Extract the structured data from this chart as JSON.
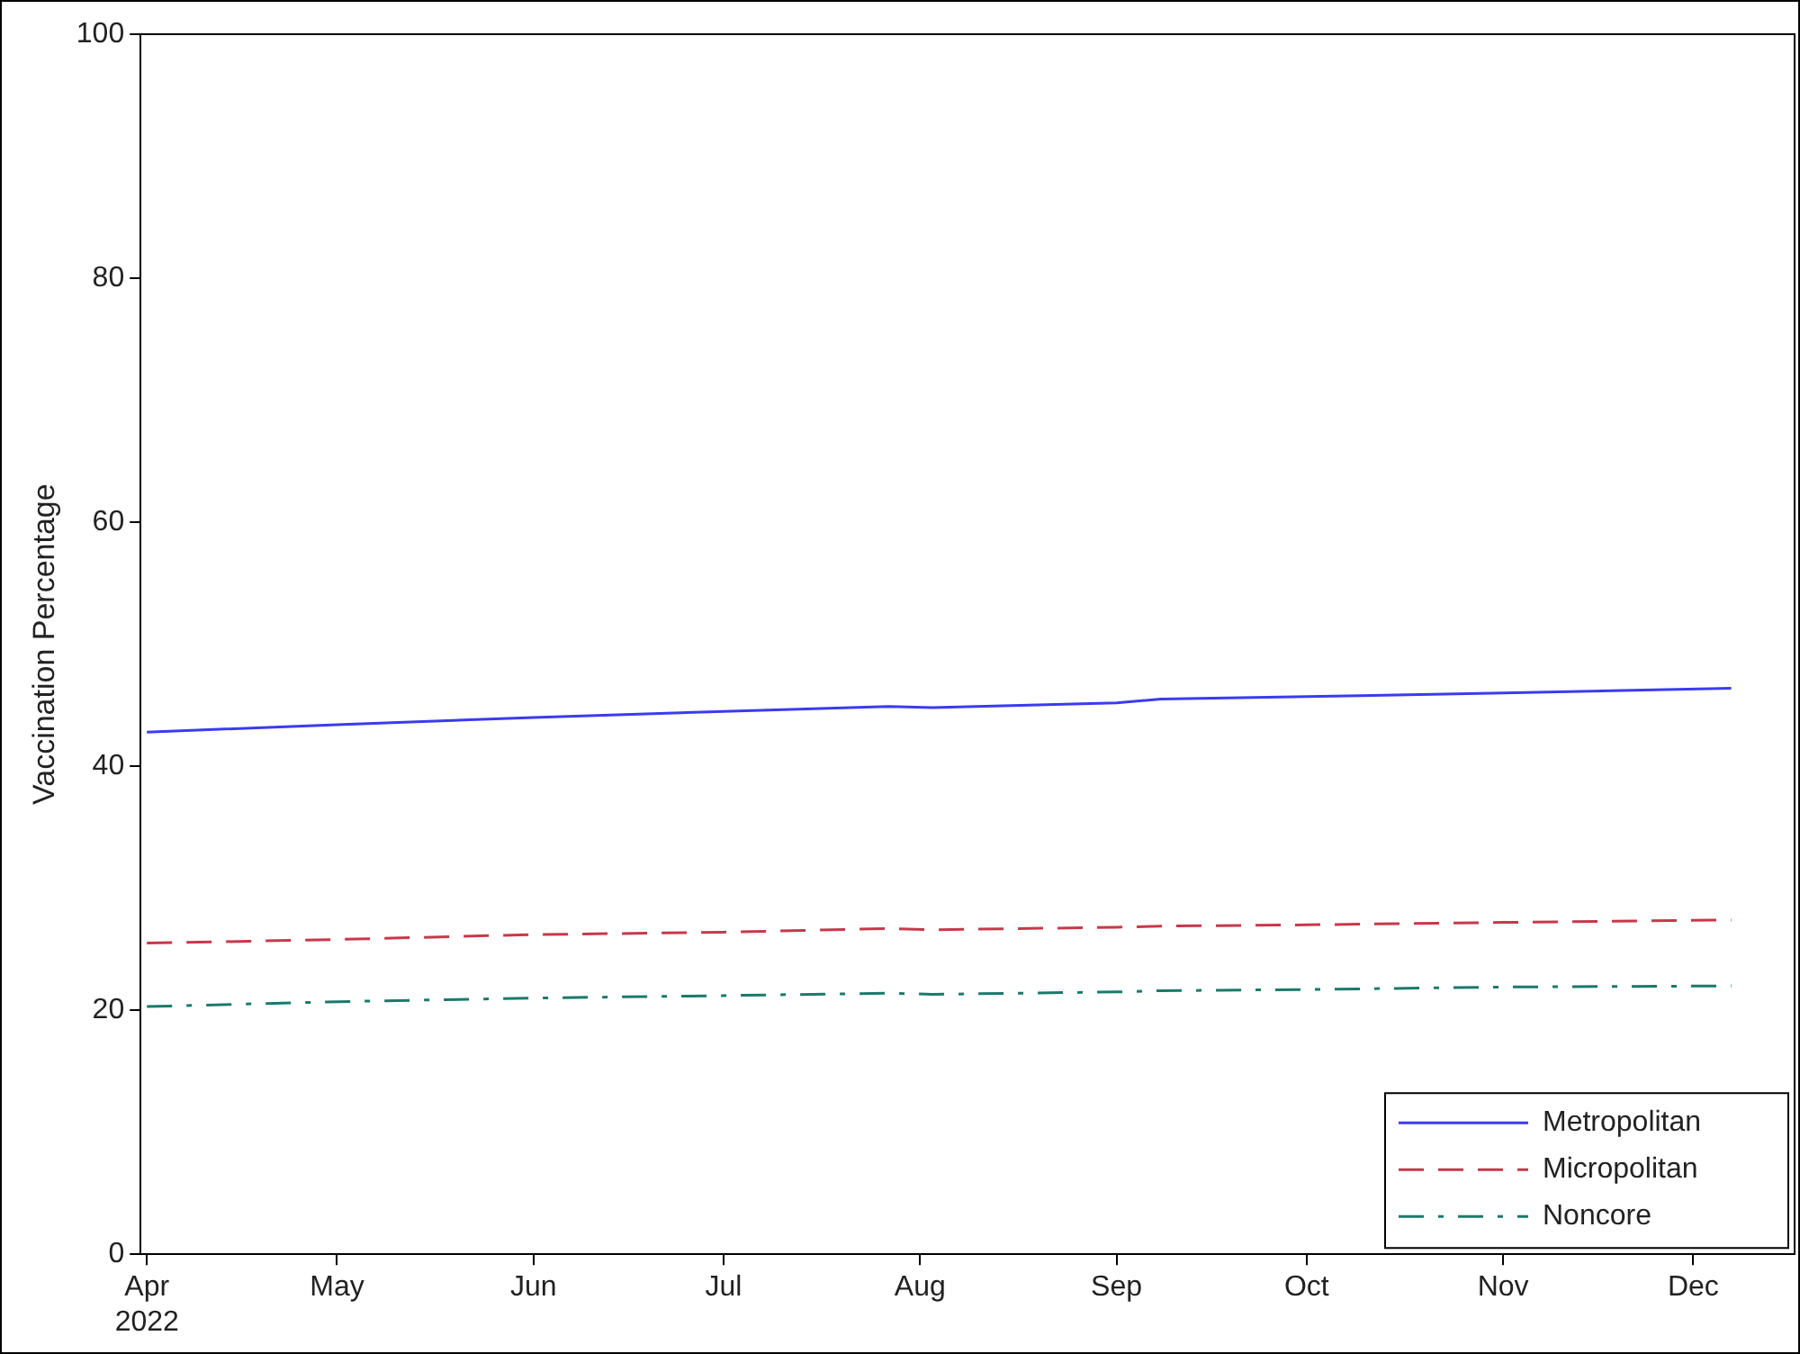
{
  "chart_data": {
    "type": "line",
    "ylabel": "Vaccination Percentage",
    "x": [
      "2022-04-01",
      "2022-05-01",
      "2022-06-01",
      "2022-07-01",
      "2022-07-27",
      "2022-08-03",
      "2022-09-01",
      "2022-09-08",
      "2022-10-01",
      "2022-11-01",
      "2022-12-07"
    ],
    "series": [
      {
        "name": "Metropolitan",
        "color": "#3b3bf0",
        "line_style": "solid",
        "values": [
          42.8,
          43.4,
          44.0,
          44.5,
          44.9,
          44.8,
          45.2,
          45.5,
          45.7,
          46.0,
          46.4
        ]
      },
      {
        "name": "Micropolitan",
        "color": "#c8384a",
        "line_style": "dashed",
        "values": [
          25.5,
          25.8,
          26.2,
          26.4,
          26.7,
          26.6,
          26.8,
          26.9,
          27.0,
          27.2,
          27.4
        ]
      },
      {
        "name": "Noncore",
        "color": "#1a7a6a",
        "line_style": "dashdot",
        "values": [
          20.3,
          20.7,
          21.0,
          21.2,
          21.4,
          21.3,
          21.5,
          21.6,
          21.7,
          21.9,
          22.0
        ]
      }
    ],
    "xlim": [
      "2022-03-31",
      "2022-12-17"
    ],
    "xticks": [
      {
        "value": "2022-04-01",
        "label": "Apr\n2022"
      },
      {
        "value": "2022-05-01",
        "label": "May"
      },
      {
        "value": "2022-06-01",
        "label": "Jun"
      },
      {
        "value": "2022-07-01",
        "label": "Jul"
      },
      {
        "value": "2022-08-01",
        "label": "Aug"
      },
      {
        "value": "2022-09-01",
        "label": "Sep"
      },
      {
        "value": "2022-10-01",
        "label": "Oct"
      },
      {
        "value": "2022-11-01",
        "label": "Nov"
      },
      {
        "value": "2022-12-01",
        "label": "Dec"
      }
    ],
    "ylim": [
      0,
      100
    ],
    "yticks": [
      0,
      20,
      40,
      60,
      80,
      100
    ],
    "grid": false,
    "legend": "bottom right",
    "marker": "none"
  }
}
